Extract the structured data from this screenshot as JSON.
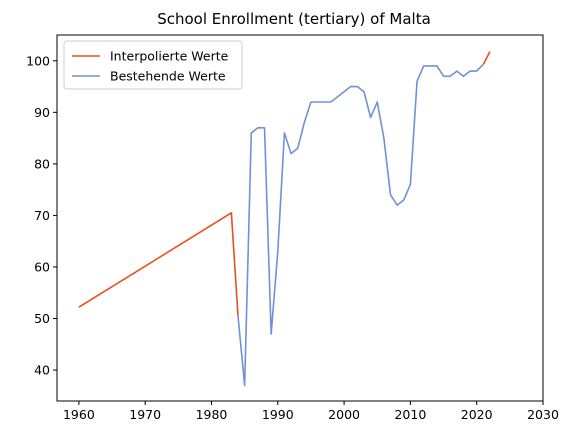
{
  "chart_data": {
    "type": "line",
    "title": "School Enrollment (tertiary) of Malta",
    "xlabel": "",
    "ylabel": "",
    "xlim": [
      1956.7,
      2030
    ],
    "ylim": [
      34,
      105
    ],
    "xticks": [
      1960,
      1970,
      1980,
      1990,
      2000,
      2010,
      2020,
      2030
    ],
    "yticks": [
      40,
      50,
      60,
      70,
      80,
      90,
      100
    ],
    "grid": false,
    "legend_position": "top-left",
    "series": [
      {
        "name": "Interpolierte Werte",
        "color": "#e8501a",
        "points": [
          [
            1960,
            52.2
          ],
          [
            1983,
            70.5
          ],
          [
            1984,
            50.5
          ]
        ]
      },
      {
        "name": "Interpolierte Werte",
        "color": "#e8501a",
        "points": [
          [
            2021,
            99.3
          ],
          [
            2022,
            101.8
          ]
        ]
      },
      {
        "name": "Bestehende Werte",
        "color": "#7090d8",
        "points": [
          [
            1984,
            50.5
          ],
          [
            1985,
            37
          ],
          [
            1986,
            86
          ],
          [
            1987,
            87
          ],
          [
            1988,
            87
          ],
          [
            1989,
            47
          ],
          [
            1990,
            63
          ],
          [
            1991,
            86
          ],
          [
            1992,
            82
          ],
          [
            1993,
            83
          ],
          [
            1994,
            88
          ],
          [
            1995,
            92
          ],
          [
            1996,
            92
          ],
          [
            1997,
            92
          ],
          [
            1998,
            92
          ],
          [
            1999,
            93
          ],
          [
            2000,
            94
          ],
          [
            2001,
            95
          ],
          [
            2002,
            95
          ],
          [
            2003,
            94
          ],
          [
            2004,
            89
          ],
          [
            2005,
            92
          ],
          [
            2006,
            85
          ],
          [
            2007,
            74
          ],
          [
            2008,
            72
          ],
          [
            2009,
            73
          ],
          [
            2010,
            76
          ],
          [
            2011,
            96
          ],
          [
            2012,
            99
          ],
          [
            2013,
            99
          ],
          [
            2014,
            99
          ],
          [
            2015,
            97
          ],
          [
            2016,
            97
          ],
          [
            2017,
            98
          ],
          [
            2018,
            97
          ],
          [
            2019,
            98
          ],
          [
            2020,
            98
          ],
          [
            2021,
            99.3
          ]
        ]
      }
    ],
    "legend": [
      {
        "label": "Interpolierte Werte",
        "color": "#e8501a"
      },
      {
        "label": "Bestehende Werte",
        "color": "#7090d8"
      }
    ]
  }
}
